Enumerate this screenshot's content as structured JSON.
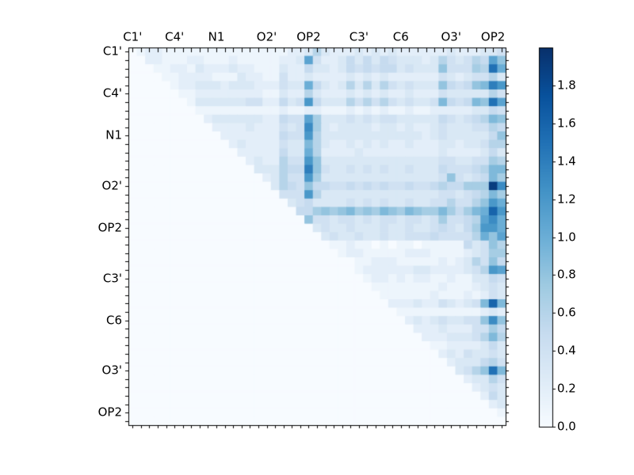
{
  "chart_data": {
    "type": "heatmap",
    "title": "",
    "n": 45,
    "x_tick_labels": [
      "C1'",
      "C4'",
      "N1",
      "O2'",
      "OP2",
      "C3'",
      "C6",
      "O3'",
      "OP2"
    ],
    "y_tick_labels": [
      "C1'",
      "C4'",
      "N1",
      "O2'",
      "OP2",
      "C3'",
      "C6",
      "O3'",
      "OP2"
    ],
    "tick_label_cells": [
      0,
      5,
      10,
      16,
      21,
      27,
      32,
      38,
      43
    ],
    "vmin": 0.0,
    "vmax": 2.0,
    "grid": false,
    "legend_position": "colorbar-right",
    "colormap": {
      "name": "Blues",
      "anchors": [
        "#f7fbff",
        "#deebf7",
        "#c6dbef",
        "#9ecae1",
        "#6baed6",
        "#4292c6",
        "#2171b5",
        "#08519c",
        "#08306b"
      ]
    },
    "colorbar_tick_values": [
      0.0,
      0.2,
      0.4,
      0.6,
      0.8,
      1.0,
      1.2,
      1.4,
      1.6,
      1.8
    ],
    "matrix_encoding": "45 strings of 45 chars; cell value = index of char in '0123456789abcdefghijk' times 0.1 (so '0'=0.0, '9'=0.9, 'a'=1.0, 'j'=1.9, 'k'=2.0); matrix is upper-triangular, lower triangle and diagonal are 0",
    "matrix_rows": [
      "012211111111111111122363222323232222223222 3343",
      "002211122111211111223b422353535433323643465b8",
      "0001122132223221113225332354545534333844476fa",
      "000011222211132211422322223232322222243234463",
      "000001223332333222433a532363636434333854589ec",
      "000000112222222211322632223232322322243333364",
      "000000013333334422534c533364646434334954598fb",
      "000000001111111111211221112121211211222223354",
      "000000000233333322544b73334343443333354345698",
      "00000000002222322243 4d73233332332322343334465",
      "000000000002222222544c63333333333332343333358",
      "000000000000232222433963223232322322233233466",
      "000000000000022222533a62222322222222232222353",
      "000000000000002322644c83333333333333344334476",
      "000000000000000333655e84334343433433354445699",
      "000000000000000023644c73333333333333348434597",
      "0000000000000000036548554454545445445655777jd",
      "000000000000000000444c63333333333333344345697",
      "0000000000000000000345333343434334334464468ca",
      "000000000000000000005578789787987987797579agc",
      "000000000000000000000844344343443443474456bda",
      "000000000000000000000034334333433433454357cca",
      "000000000000000000000003433433433444544446a8b",
      "000000000000000000000000112110101101111153486",
      "000000000000000000000000012211111222111123477",
      "000000000000000000000000000112221111121236485",
      "0000000000000000000000000001222222332222346cb",
      "000000000000000000000000000012212122112113354",
      "000000000000000000000000000001111111121112343",
      "000000000000000000000000000000111111211121243",
      "0000000000000000000000000000000222322432349g9",
      "000000000000000000000000000000001111111111232",
      "0000000000000000000000000000000002323433448d8",
      "000000000000000000000000000000000022232224475",
      "000000000000000000000000000000000002223334696",
      "000000000000000000000000000000000000112222353",
      "000000000000000000000000000000000000023243343",
      "000000000000000000000000000000000000002333564",
      "0000000000000000000000000000000000000003468f9",
      "000000000000000000000000000000000000000023364",
      "000000000000000000000000000000000000000002343",
      "000000000000000000000000000000000000000000253",
      "000000000000000000000000000000000000000000023",
      "000000000000000000000000000000000000000000001",
      "000000000000000000000000000000000000000000000"
    ],
    "colors": {
      "frame": "#000000",
      "label": "#000000",
      "figure_background": "#ffffff"
    }
  }
}
